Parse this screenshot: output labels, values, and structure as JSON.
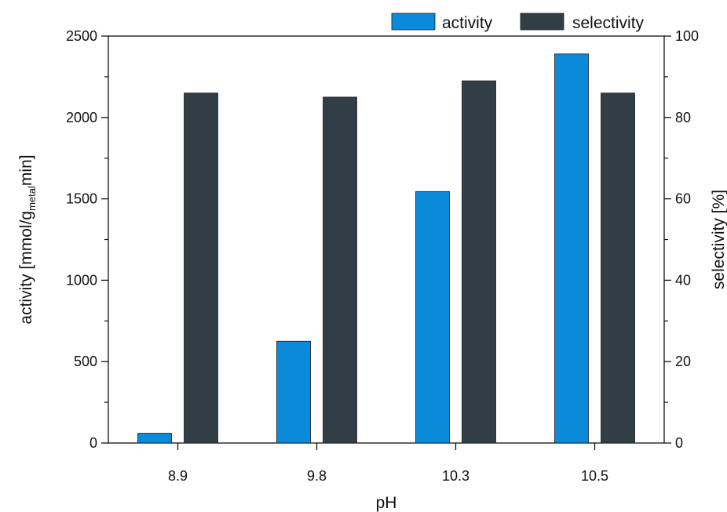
{
  "chart_data": {
    "type": "bar",
    "categories": [
      "8.9",
      "9.8",
      "10.3",
      "10.5"
    ],
    "series": [
      {
        "name": "activity",
        "axis": "left",
        "color": "#0a8ad8",
        "values": [
          60,
          625,
          1545,
          2390
        ]
      },
      {
        "name": "selectivity",
        "axis": "right",
        "color": "#323e46",
        "values": [
          86,
          85,
          89,
          86
        ]
      }
    ],
    "xlabel": "pH",
    "ylabel_left": {
      "prefix": "activity [mmol/g",
      "subscript": "metal",
      "suffix": "min]"
    },
    "ylabel_right": "selectivity [%]",
    "ylim_left": [
      0,
      2500
    ],
    "ylim_right": [
      0,
      100
    ],
    "yticks_left": [
      "0",
      "500",
      "1000",
      "1500",
      "2000",
      "2500"
    ],
    "yticks_right": [
      "0",
      "20",
      "40",
      "60",
      "80",
      "100"
    ],
    "grid": false,
    "legend": "top-right"
  }
}
